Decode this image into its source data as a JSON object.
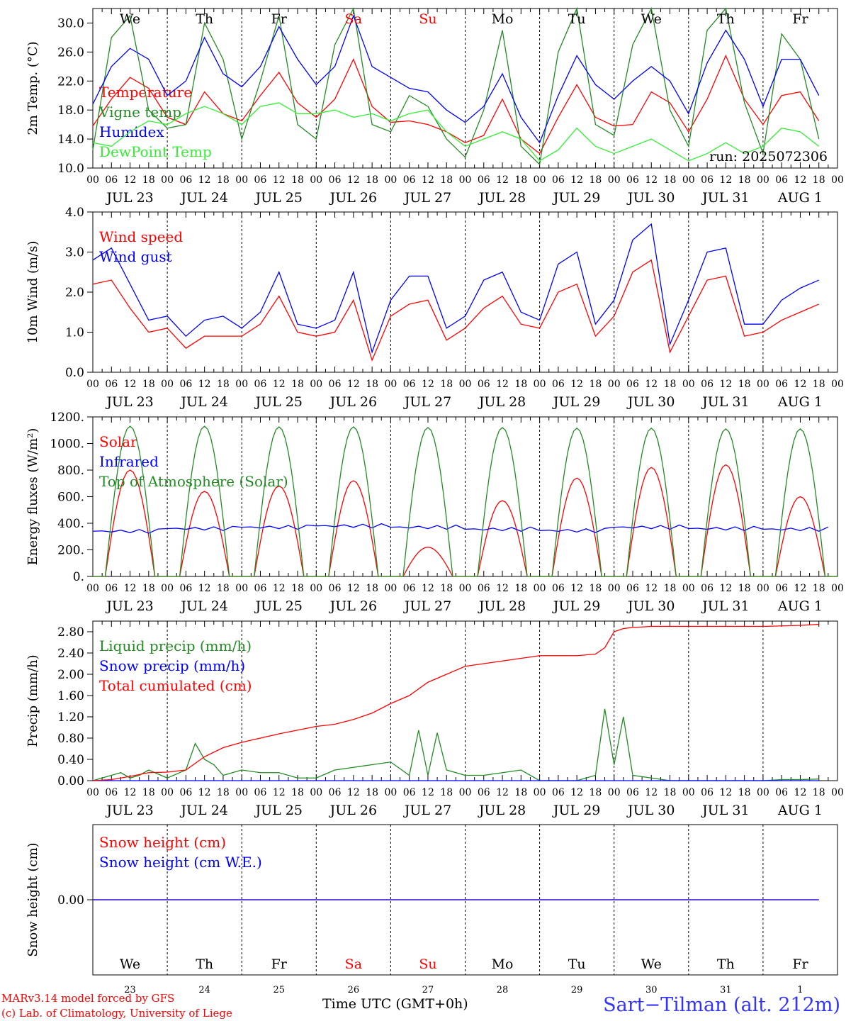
{
  "colors": {
    "red": "#ff0000",
    "green": "#228b22",
    "lightgreen": "#33ee33",
    "blue": "#0000ff",
    "grid": "#000000"
  },
  "time_axis": {
    "hour_ticks": [
      "00",
      "06",
      "12",
      "18"
    ],
    "date_labels": [
      "JUL 23",
      "JUL 24",
      "JUL 25",
      "JUL 26",
      "JUL 27",
      "JUL 28",
      "JUL 29",
      "JUL 30",
      "JUL 31",
      "AUG  1"
    ],
    "weekdays": [
      "We",
      "Th",
      "Fr",
      "Sa",
      "Su",
      "Mo",
      "Tu",
      "We",
      "Th",
      "Fr"
    ],
    "weekend_days": [
      "Sa",
      "Su"
    ],
    "day_numbers": [
      "23",
      "24",
      "25",
      "26",
      "27",
      "28",
      "29",
      "30",
      "31",
      "1"
    ],
    "xlabel": "Time UTC (GMT+0h)"
  },
  "footer": {
    "model_line": "MARv3.14 model forced by GFS",
    "credit_line": "(c) Lab. of Climatology, University of Liege",
    "xlabel": "Time UTC (GMT+0h)",
    "station": "Sart−Tilman (alt. 212m)"
  },
  "chart_data": [
    {
      "type": "line",
      "ylabel": "2m Temp. (°C)",
      "ylim": [
        10,
        32
      ],
      "yticks": [
        "10.0",
        "14.0",
        "18.0",
        "22.0",
        "26.0",
        "30.0"
      ],
      "annotation": "run: 2025072306",
      "series": [
        {
          "name": "Temperature",
          "color": "#ff0000",
          "x": [
            0,
            6,
            12,
            18,
            24,
            30,
            36,
            42,
            48,
            54,
            60,
            66,
            72,
            78,
            84,
            90,
            96,
            102,
            108,
            114,
            120,
            126,
            132,
            138,
            144,
            150,
            156,
            162,
            168,
            174,
            180,
            186,
            192,
            198,
            204,
            210,
            216,
            222,
            228,
            234
          ],
          "y": [
            15.8,
            19.5,
            22.5,
            21.0,
            17.0,
            16.0,
            20.5,
            17.5,
            16.5,
            20.0,
            23.2,
            19.0,
            17.0,
            19.5,
            25.0,
            18.5,
            16.3,
            16.5,
            16.0,
            15.0,
            13.5,
            14.5,
            19.5,
            14.0,
            12.0,
            17.0,
            21.5,
            17.0,
            15.8,
            16.0,
            20.5,
            19.0,
            15.0,
            19.5,
            25.5,
            19.5,
            16.0,
            20.0,
            20.5,
            16.5
          ]
        },
        {
          "name": "Vigne temp",
          "color": "#228b22",
          "x": [
            0,
            6,
            12,
            18,
            24,
            30,
            36,
            42,
            48,
            54,
            60,
            66,
            72,
            78,
            84,
            90,
            96,
            102,
            108,
            114,
            120,
            126,
            132,
            138,
            144,
            150,
            156,
            162,
            168,
            174,
            180,
            186,
            192,
            198,
            204,
            210,
            216,
            222,
            228,
            234
          ],
          "y": [
            12.5,
            28.0,
            31.0,
            18.0,
            15.5,
            16.0,
            30.0,
            25.0,
            14.0,
            22.0,
            31.0,
            16.0,
            14.0,
            27.0,
            32.0,
            16.0,
            15.0,
            20.0,
            18.5,
            14.0,
            11.5,
            18.0,
            29.0,
            13.0,
            10.5,
            26.0,
            32.0,
            16.0,
            14.5,
            27.0,
            32.0,
            18.0,
            13.0,
            29.0,
            32.0,
            19.0,
            12.0,
            28.5,
            25.0,
            14.0
          ]
        },
        {
          "name": "Humidex",
          "color": "#0000ff",
          "x": [
            0,
            6,
            12,
            18,
            24,
            30,
            36,
            42,
            48,
            54,
            60,
            66,
            72,
            78,
            84,
            90,
            96,
            102,
            108,
            114,
            120,
            126,
            132,
            138,
            144,
            150,
            156,
            162,
            168,
            174,
            180,
            186,
            192,
            198,
            204,
            210,
            216,
            222,
            228,
            234
          ],
          "y": [
            18.8,
            24.0,
            26.5,
            25.0,
            20.0,
            22.0,
            28.0,
            23.0,
            21.2,
            24.0,
            29.5,
            25.0,
            21.5,
            24.0,
            31.0,
            24.0,
            22.5,
            21.0,
            20.5,
            18.0,
            16.3,
            18.5,
            23.0,
            17.0,
            13.5,
            20.0,
            25.5,
            21.5,
            19.5,
            22.0,
            24.0,
            22.0,
            17.5,
            24.5,
            29.0,
            25.0,
            18.5,
            25.0,
            25.0,
            20.0
          ]
        },
        {
          "name": "DewPoint Temp",
          "color": "#33ee33",
          "x": [
            0,
            6,
            12,
            18,
            24,
            30,
            36,
            42,
            48,
            54,
            60,
            66,
            72,
            78,
            84,
            90,
            96,
            102,
            108,
            114,
            120,
            126,
            132,
            138,
            144,
            150,
            156,
            162,
            168,
            174,
            180,
            186,
            192,
            198,
            204,
            210,
            216,
            222,
            228,
            234
          ],
          "y": [
            13.5,
            13.0,
            15.0,
            16.5,
            16.0,
            17.5,
            18.5,
            17.5,
            16.0,
            18.5,
            19.0,
            17.5,
            17.5,
            18.0,
            17.0,
            17.5,
            16.5,
            17.5,
            18.0,
            15.0,
            13.0,
            14.0,
            15.0,
            14.0,
            11.0,
            12.5,
            15.5,
            13.0,
            12.0,
            13.0,
            14.0,
            12.5,
            11.0,
            12.0,
            13.5,
            12.0,
            13.0,
            15.5,
            15.0,
            13.0
          ]
        }
      ]
    },
    {
      "type": "line",
      "ylabel": "10m Wind (m/s)",
      "ylim": [
        0,
        4
      ],
      "yticks": [
        "0.0",
        "1.0",
        "2.0",
        "3.0",
        "4.0"
      ],
      "series": [
        {
          "name": "Wind speed",
          "color": "#ff0000",
          "x": [
            0,
            6,
            12,
            18,
            24,
            30,
            36,
            42,
            48,
            54,
            60,
            66,
            72,
            78,
            84,
            90,
            96,
            102,
            108,
            114,
            120,
            126,
            132,
            138,
            144,
            150,
            156,
            162,
            168,
            174,
            180,
            186,
            192,
            198,
            204,
            210,
            216,
            222,
            228,
            234
          ],
          "y": [
            2.2,
            2.3,
            1.6,
            1.0,
            1.1,
            0.6,
            0.9,
            0.9,
            0.9,
            1.2,
            1.9,
            1.0,
            0.9,
            1.0,
            1.8,
            0.3,
            1.4,
            1.7,
            1.8,
            0.8,
            1.1,
            1.6,
            1.9,
            1.2,
            1.1,
            2.0,
            2.2,
            0.9,
            1.4,
            2.5,
            2.8,
            0.5,
            1.4,
            2.3,
            2.4,
            0.9,
            1.0,
            1.3,
            1.5,
            1.7
          ]
        },
        {
          "name": "Wind gust",
          "color": "#0000ff",
          "x": [
            0,
            6,
            12,
            18,
            24,
            30,
            36,
            42,
            48,
            54,
            60,
            66,
            72,
            78,
            84,
            90,
            96,
            102,
            108,
            114,
            120,
            126,
            132,
            138,
            144,
            150,
            156,
            162,
            168,
            174,
            180,
            186,
            192,
            198,
            204,
            210,
            216,
            222,
            228,
            234
          ],
          "y": [
            2.8,
            3.1,
            2.2,
            1.3,
            1.4,
            0.9,
            1.3,
            1.4,
            1.1,
            1.5,
            2.5,
            1.2,
            1.1,
            1.3,
            2.5,
            0.5,
            1.8,
            2.4,
            2.4,
            1.1,
            1.4,
            2.3,
            2.5,
            1.5,
            1.3,
            2.7,
            3.0,
            1.2,
            1.8,
            3.3,
            3.7,
            0.7,
            1.8,
            3.0,
            3.1,
            1.2,
            1.2,
            1.8,
            2.1,
            2.3
          ]
        }
      ]
    },
    {
      "type": "line",
      "ylabel": "Energy fluxes (W/m²)",
      "ylim": [
        0,
        1200
      ],
      "yticks": [
        "0.",
        "200.",
        "400.",
        "600.",
        "800.",
        "1000.",
        "1200."
      ],
      "series": [
        {
          "name": "Solar",
          "color": "#ff0000",
          "daily_peaks": [
            800,
            640,
            680,
            720,
            220,
            570,
            740,
            820,
            840,
            600
          ]
        },
        {
          "name": "Infrared",
          "color": "#0000ff",
          "daily_mean": [
            340,
            360,
            370,
            380,
            370,
            355,
            345,
            370,
            360,
            355
          ]
        },
        {
          "name": "Top of Atmosphere (Solar)",
          "color": "#228b22",
          "daily_peaks": [
            1130,
            1130,
            1125,
            1125,
            1120,
            1120,
            1115,
            1115,
            1110,
            1110
          ]
        }
      ]
    },
    {
      "type": "line",
      "ylabel": "Precip (mm/h)",
      "ylim": [
        0,
        3.0
      ],
      "yticks": [
        "0.00",
        "0.40",
        "0.80",
        "1.20",
        "1.60",
        "2.00",
        "2.40",
        "2.80"
      ],
      "series": [
        {
          "name": "Liquid precip (mm/h)",
          "color": "#228b22",
          "x": [
            0,
            6,
            9,
            12,
            15,
            18,
            24,
            30,
            33,
            36,
            39,
            42,
            48,
            54,
            60,
            66,
            72,
            78,
            84,
            90,
            96,
            102,
            105,
            108,
            111,
            114,
            120,
            126,
            132,
            138,
            144,
            150,
            156,
            162,
            165,
            168,
            171,
            174,
            180,
            186,
            192,
            198,
            204,
            210,
            216,
            222,
            228,
            234
          ],
          "y": [
            0,
            0.1,
            0.15,
            0.05,
            0.1,
            0.2,
            0.05,
            0.2,
            0.7,
            0.4,
            0.3,
            0.1,
            0.2,
            0.15,
            0.15,
            0.05,
            0.05,
            0.2,
            0.25,
            0.3,
            0.35,
            0.1,
            0.95,
            0.1,
            0.9,
            0.2,
            0.1,
            0.1,
            0.15,
            0.2,
            0,
            0,
            0,
            0.1,
            1.35,
            0.3,
            1.2,
            0.1,
            0.05,
            0,
            0,
            0,
            0,
            0,
            0,
            0.02,
            0.02,
            0.03
          ]
        },
        {
          "name": "Snow precip (mm/h)",
          "color": "#0000ff",
          "x": [
            0,
            234
          ],
          "y": [
            0,
            0
          ]
        },
        {
          "name": "Total cumulated (cm)",
          "color": "#ff0000",
          "x": [
            0,
            6,
            12,
            18,
            24,
            30,
            36,
            42,
            48,
            54,
            60,
            66,
            72,
            78,
            84,
            90,
            96,
            102,
            108,
            114,
            120,
            126,
            132,
            138,
            144,
            150,
            156,
            162,
            165,
            168,
            171,
            174,
            180,
            186,
            192,
            198,
            204,
            210,
            216,
            222,
            228,
            234
          ],
          "y": [
            0,
            0.02,
            0.08,
            0.15,
            0.16,
            0.2,
            0.45,
            0.62,
            0.72,
            0.8,
            0.88,
            0.95,
            1.02,
            1.06,
            1.15,
            1.27,
            1.45,
            1.6,
            1.85,
            2.0,
            2.15,
            2.2,
            2.25,
            2.3,
            2.35,
            2.35,
            2.35,
            2.38,
            2.5,
            2.8,
            2.86,
            2.88,
            2.9,
            2.9,
            2.9,
            2.9,
            2.9,
            2.9,
            2.9,
            2.91,
            2.92,
            2.94
          ]
        }
      ]
    },
    {
      "type": "line",
      "ylabel": "Snow height (cm)",
      "ylim": [
        -1,
        1
      ],
      "yticks": [
        "0.00"
      ],
      "series": [
        {
          "name": "Snow height (cm)",
          "color": "#ff0000",
          "x": [
            0,
            234
          ],
          "y": [
            0,
            0
          ]
        },
        {
          "name": "Snow height (cm W.E.)",
          "color": "#0000ff",
          "x": [
            0,
            234
          ],
          "y": [
            0,
            0
          ]
        }
      ]
    }
  ]
}
